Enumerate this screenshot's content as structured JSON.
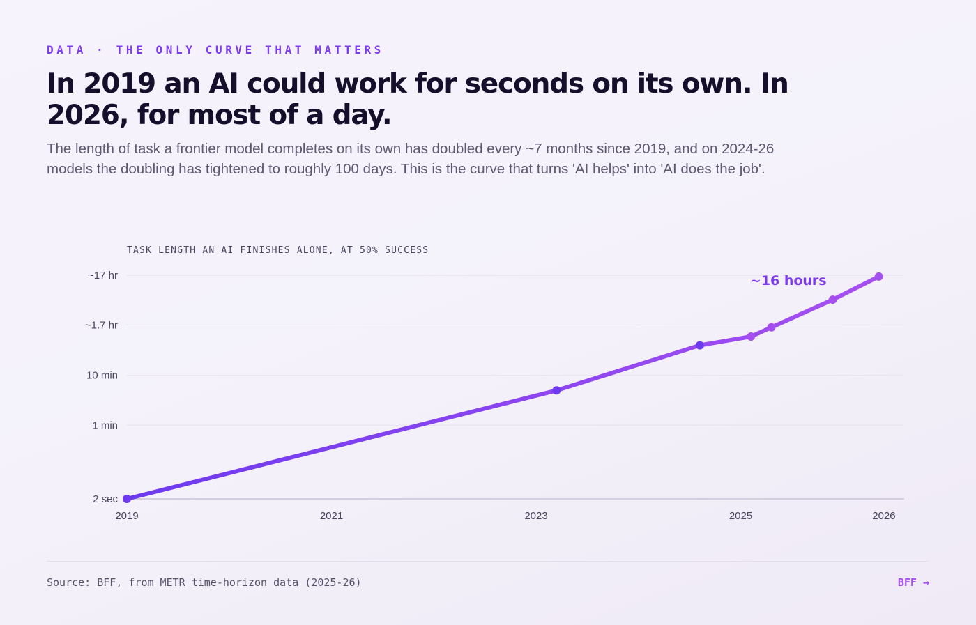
{
  "eyebrow": "DATA · THE ONLY CURVE THAT MATTERS",
  "title": "In 2019 an AI could work for seconds on its own. In 2026, for most of a day.",
  "subtitle": "The length of task a frontier model completes on its own has doubled every ~7 months since 2019, and on 2024-26 models the doubling has tightened to roughly 100 days. This is the curve that turns 'AI helps' into 'AI does the job'.",
  "footer": {
    "source": "Source: BFF, from METR time-horizon data (2025-26)",
    "brand": "BFF →"
  },
  "colors": {
    "accent": "#7c3aed",
    "line_start": "#6d3aef",
    "line_end": "#a64ff0",
    "brand": "#a64ff0"
  },
  "chart_data": {
    "type": "line",
    "ylabel": "TASK LENGTH AN AI FINISHES ALONE, AT 50% SUCCESS",
    "yscale": "log",
    "yunit": "minutes",
    "ylim": [
      0.0333,
      1020
    ],
    "yticks": [
      {
        "value": 0.0333,
        "label": "2 sec"
      },
      {
        "value": 1,
        "label": "1 min"
      },
      {
        "value": 10,
        "label": "10 min"
      },
      {
        "value": 102,
        "label": "~1.7 hr"
      },
      {
        "value": 1020,
        "label": "~17 hr"
      }
    ],
    "xlim": [
      2019.0,
      2026.0
    ],
    "xticks": [
      {
        "value": 2019.0,
        "label": "2019"
      },
      {
        "value": 2021.0,
        "label": "2021"
      },
      {
        "value": 2023.0,
        "label": "2023"
      },
      {
        "value": 2025.0,
        "label": "2025"
      },
      {
        "value": 2026.4,
        "label": "2026"
      }
    ],
    "grid": true,
    "series": [
      {
        "points": [
          {
            "x": 2019.0,
            "y": 0.0333
          },
          {
            "x": 2023.2,
            "y": 5.0
          },
          {
            "x": 2024.6,
            "y": 40
          },
          {
            "x": 2025.1,
            "y": 60
          },
          {
            "x": 2025.3,
            "y": 92
          },
          {
            "x": 2025.9,
            "y": 330
          },
          {
            "x": 2026.35,
            "y": 960
          }
        ]
      }
    ],
    "annotations": [
      {
        "text": "~16 hours",
        "x": 2026.35,
        "y": 960
      }
    ]
  }
}
